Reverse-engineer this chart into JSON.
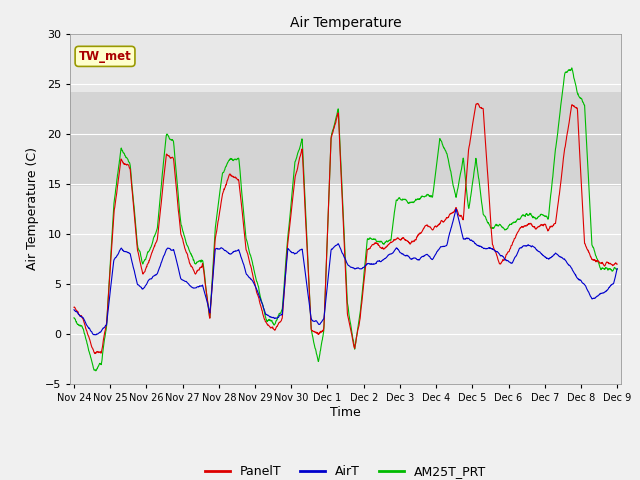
{
  "title": "Air Temperature",
  "xlabel": "Time",
  "ylabel": "Air Temperature (C)",
  "ylim": [
    -5,
    30
  ],
  "background_color": "#f0f0f0",
  "plot_bg_color": "#e8e8e8",
  "band_ymin": 14.8,
  "band_ymax": 24.2,
  "band_color": "#d4d4d4",
  "grid_color": "#ffffff",
  "annotation_label": "TW_met",
  "annotation_bg": "#ffffcc",
  "annotation_border": "#999900",
  "annotation_text_color": "#aa0000",
  "legend_labels": [
    "PanelT",
    "AirT",
    "AM25T_PRT"
  ],
  "legend_colors": [
    "#dd0000",
    "#0000cc",
    "#00bb00"
  ],
  "series_linewidth": 0.8,
  "x_tick_labels": [
    "Nov 24",
    "Nov 25",
    "Nov 26",
    "Nov 27",
    "Nov 28",
    "Nov 29",
    "Nov 30",
    "Dec 1",
    "Dec 2",
    "Dec 3",
    "Dec 4",
    "Dec 5",
    "Dec 6",
    "Dec 7",
    "Dec 8",
    "Dec 9"
  ],
  "x_tick_positions": [
    0,
    1,
    2,
    3,
    4,
    5,
    6,
    7,
    8,
    9,
    10,
    11,
    12,
    13,
    14,
    15
  ],
  "xlim": [
    -0.1,
    15.1
  ],
  "yticks": [
    -5,
    0,
    5,
    10,
    15,
    20,
    25,
    30
  ],
  "panel_knots_x": [
    0,
    0.25,
    0.55,
    0.75,
    0.9,
    1.1,
    1.3,
    1.55,
    1.75,
    1.9,
    2.1,
    2.3,
    2.55,
    2.75,
    2.95,
    3.15,
    3.35,
    3.55,
    3.75,
    3.9,
    4.1,
    4.3,
    4.55,
    4.75,
    4.9,
    5.1,
    5.3,
    5.55,
    5.75,
    5.9,
    6.1,
    6.3,
    6.55,
    6.75,
    6.9,
    7.1,
    7.3,
    7.55,
    7.75,
    7.9,
    8.1,
    8.3,
    8.55,
    8.75,
    8.9,
    9.1,
    9.3,
    9.55,
    9.75,
    9.9,
    10.1,
    10.3,
    10.55,
    10.75,
    10.9,
    11.1,
    11.3,
    11.55,
    11.75,
    11.9,
    12.1,
    12.3,
    12.55,
    12.75,
    12.9,
    13.1,
    13.3,
    13.55,
    13.75,
    13.9,
    14.1,
    14.3,
    14.55,
    14.75,
    14.9,
    15.0
  ],
  "panel_knots_y": [
    2.5,
    1.5,
    -1.8,
    -2.0,
    1.0,
    12.0,
    17.5,
    16.5,
    8.5,
    6.0,
    7.5,
    9.5,
    18.0,
    17.5,
    10.0,
    7.5,
    6.0,
    7.0,
    1.5,
    9.5,
    14.0,
    16.0,
    15.5,
    8.5,
    6.5,
    3.5,
    1.0,
    0.5,
    1.5,
    9.0,
    15.5,
    18.5,
    0.5,
    0.0,
    0.5,
    19.5,
    22.0,
    2.0,
    -1.5,
    1.5,
    8.5,
    9.0,
    8.5,
    9.0,
    9.5,
    9.5,
    9.0,
    10.0,
    11.0,
    10.5,
    11.0,
    11.5,
    12.5,
    11.5,
    18.5,
    23.0,
    22.5,
    9.0,
    7.0,
    7.5,
    9.0,
    10.5,
    11.0,
    10.5,
    11.0,
    10.5,
    11.0,
    18.5,
    23.0,
    22.5,
    9.0,
    7.5,
    7.0,
    7.0,
    7.0,
    7.0
  ],
  "air_knots_x": [
    0,
    0.25,
    0.55,
    0.75,
    0.9,
    1.1,
    1.3,
    1.55,
    1.75,
    1.9,
    2.1,
    2.3,
    2.55,
    2.75,
    2.95,
    3.15,
    3.35,
    3.55,
    3.75,
    3.9,
    4.1,
    4.3,
    4.55,
    4.75,
    4.9,
    5.1,
    5.3,
    5.55,
    5.75,
    5.9,
    6.1,
    6.3,
    6.55,
    6.75,
    6.9,
    7.1,
    7.3,
    7.55,
    7.75,
    7.9,
    8.1,
    8.3,
    8.55,
    8.75,
    8.9,
    9.1,
    9.3,
    9.55,
    9.75,
    9.9,
    10.1,
    10.3,
    10.55,
    10.75,
    10.9,
    11.1,
    11.3,
    11.55,
    11.75,
    11.9,
    12.1,
    12.3,
    12.55,
    12.75,
    12.9,
    13.1,
    13.3,
    13.55,
    13.75,
    13.9,
    14.1,
    14.3,
    14.55,
    14.75,
    14.9,
    15.0
  ],
  "air_knots_y": [
    2.5,
    1.5,
    -0.2,
    0.2,
    1.0,
    7.5,
    8.5,
    8.0,
    5.0,
    4.5,
    5.5,
    6.0,
    8.5,
    8.5,
    5.5,
    5.0,
    4.5,
    5.0,
    2.0,
    8.5,
    8.5,
    8.0,
    8.5,
    6.0,
    5.5,
    4.0,
    2.0,
    1.5,
    2.0,
    8.5,
    8.0,
    8.5,
    1.5,
    1.0,
    1.5,
    8.5,
    9.0,
    7.0,
    6.5,
    6.5,
    7.0,
    7.0,
    7.5,
    8.0,
    8.5,
    8.0,
    7.5,
    7.5,
    8.0,
    7.5,
    8.5,
    9.0,
    12.5,
    9.5,
    9.5,
    9.0,
    8.5,
    8.5,
    8.0,
    7.5,
    7.0,
    8.5,
    9.0,
    8.5,
    8.0,
    7.5,
    8.0,
    7.5,
    6.5,
    5.5,
    5.0,
    3.5,
    4.0,
    4.5,
    5.0,
    6.5
  ],
  "am25_knots_x": [
    0,
    0.25,
    0.55,
    0.75,
    0.9,
    1.1,
    1.3,
    1.55,
    1.75,
    1.9,
    2.1,
    2.3,
    2.55,
    2.75,
    2.95,
    3.15,
    3.35,
    3.55,
    3.75,
    3.9,
    4.1,
    4.3,
    4.55,
    4.75,
    4.9,
    5.1,
    5.3,
    5.55,
    5.75,
    5.9,
    6.1,
    6.3,
    6.55,
    6.75,
    6.9,
    7.1,
    7.3,
    7.55,
    7.75,
    7.9,
    8.1,
    8.3,
    8.55,
    8.75,
    8.9,
    9.1,
    9.3,
    9.55,
    9.75,
    9.9,
    10.1,
    10.3,
    10.55,
    10.75,
    10.9,
    11.1,
    11.3,
    11.55,
    11.75,
    11.9,
    12.1,
    12.3,
    12.55,
    12.75,
    12.9,
    13.1,
    13.3,
    13.55,
    13.75,
    13.9,
    14.1,
    14.3,
    14.55,
    14.75,
    14.9,
    15.0
  ],
  "am25_knots_y": [
    1.5,
    0.5,
    -3.5,
    -3.0,
    1.0,
    13.0,
    18.5,
    17.0,
    9.0,
    7.0,
    8.5,
    10.5,
    20.0,
    19.0,
    11.0,
    8.5,
    7.0,
    7.5,
    1.5,
    10.5,
    16.0,
    17.5,
    17.5,
    9.5,
    7.5,
    4.5,
    1.5,
    1.0,
    2.5,
    9.5,
    17.0,
    19.5,
    0.5,
    -3.0,
    0.5,
    19.5,
    22.5,
    3.0,
    -1.5,
    2.0,
    9.5,
    9.5,
    9.0,
    9.5,
    13.5,
    13.5,
    13.0,
    13.5,
    14.0,
    13.5,
    19.5,
    18.0,
    13.5,
    17.5,
    12.5,
    17.5,
    12.0,
    10.5,
    11.0,
    10.5,
    11.0,
    11.5,
    12.0,
    11.5,
    12.0,
    11.5,
    18.5,
    26.0,
    26.5,
    24.0,
    23.0,
    9.0,
    6.5,
    6.5,
    6.5,
    6.5
  ]
}
